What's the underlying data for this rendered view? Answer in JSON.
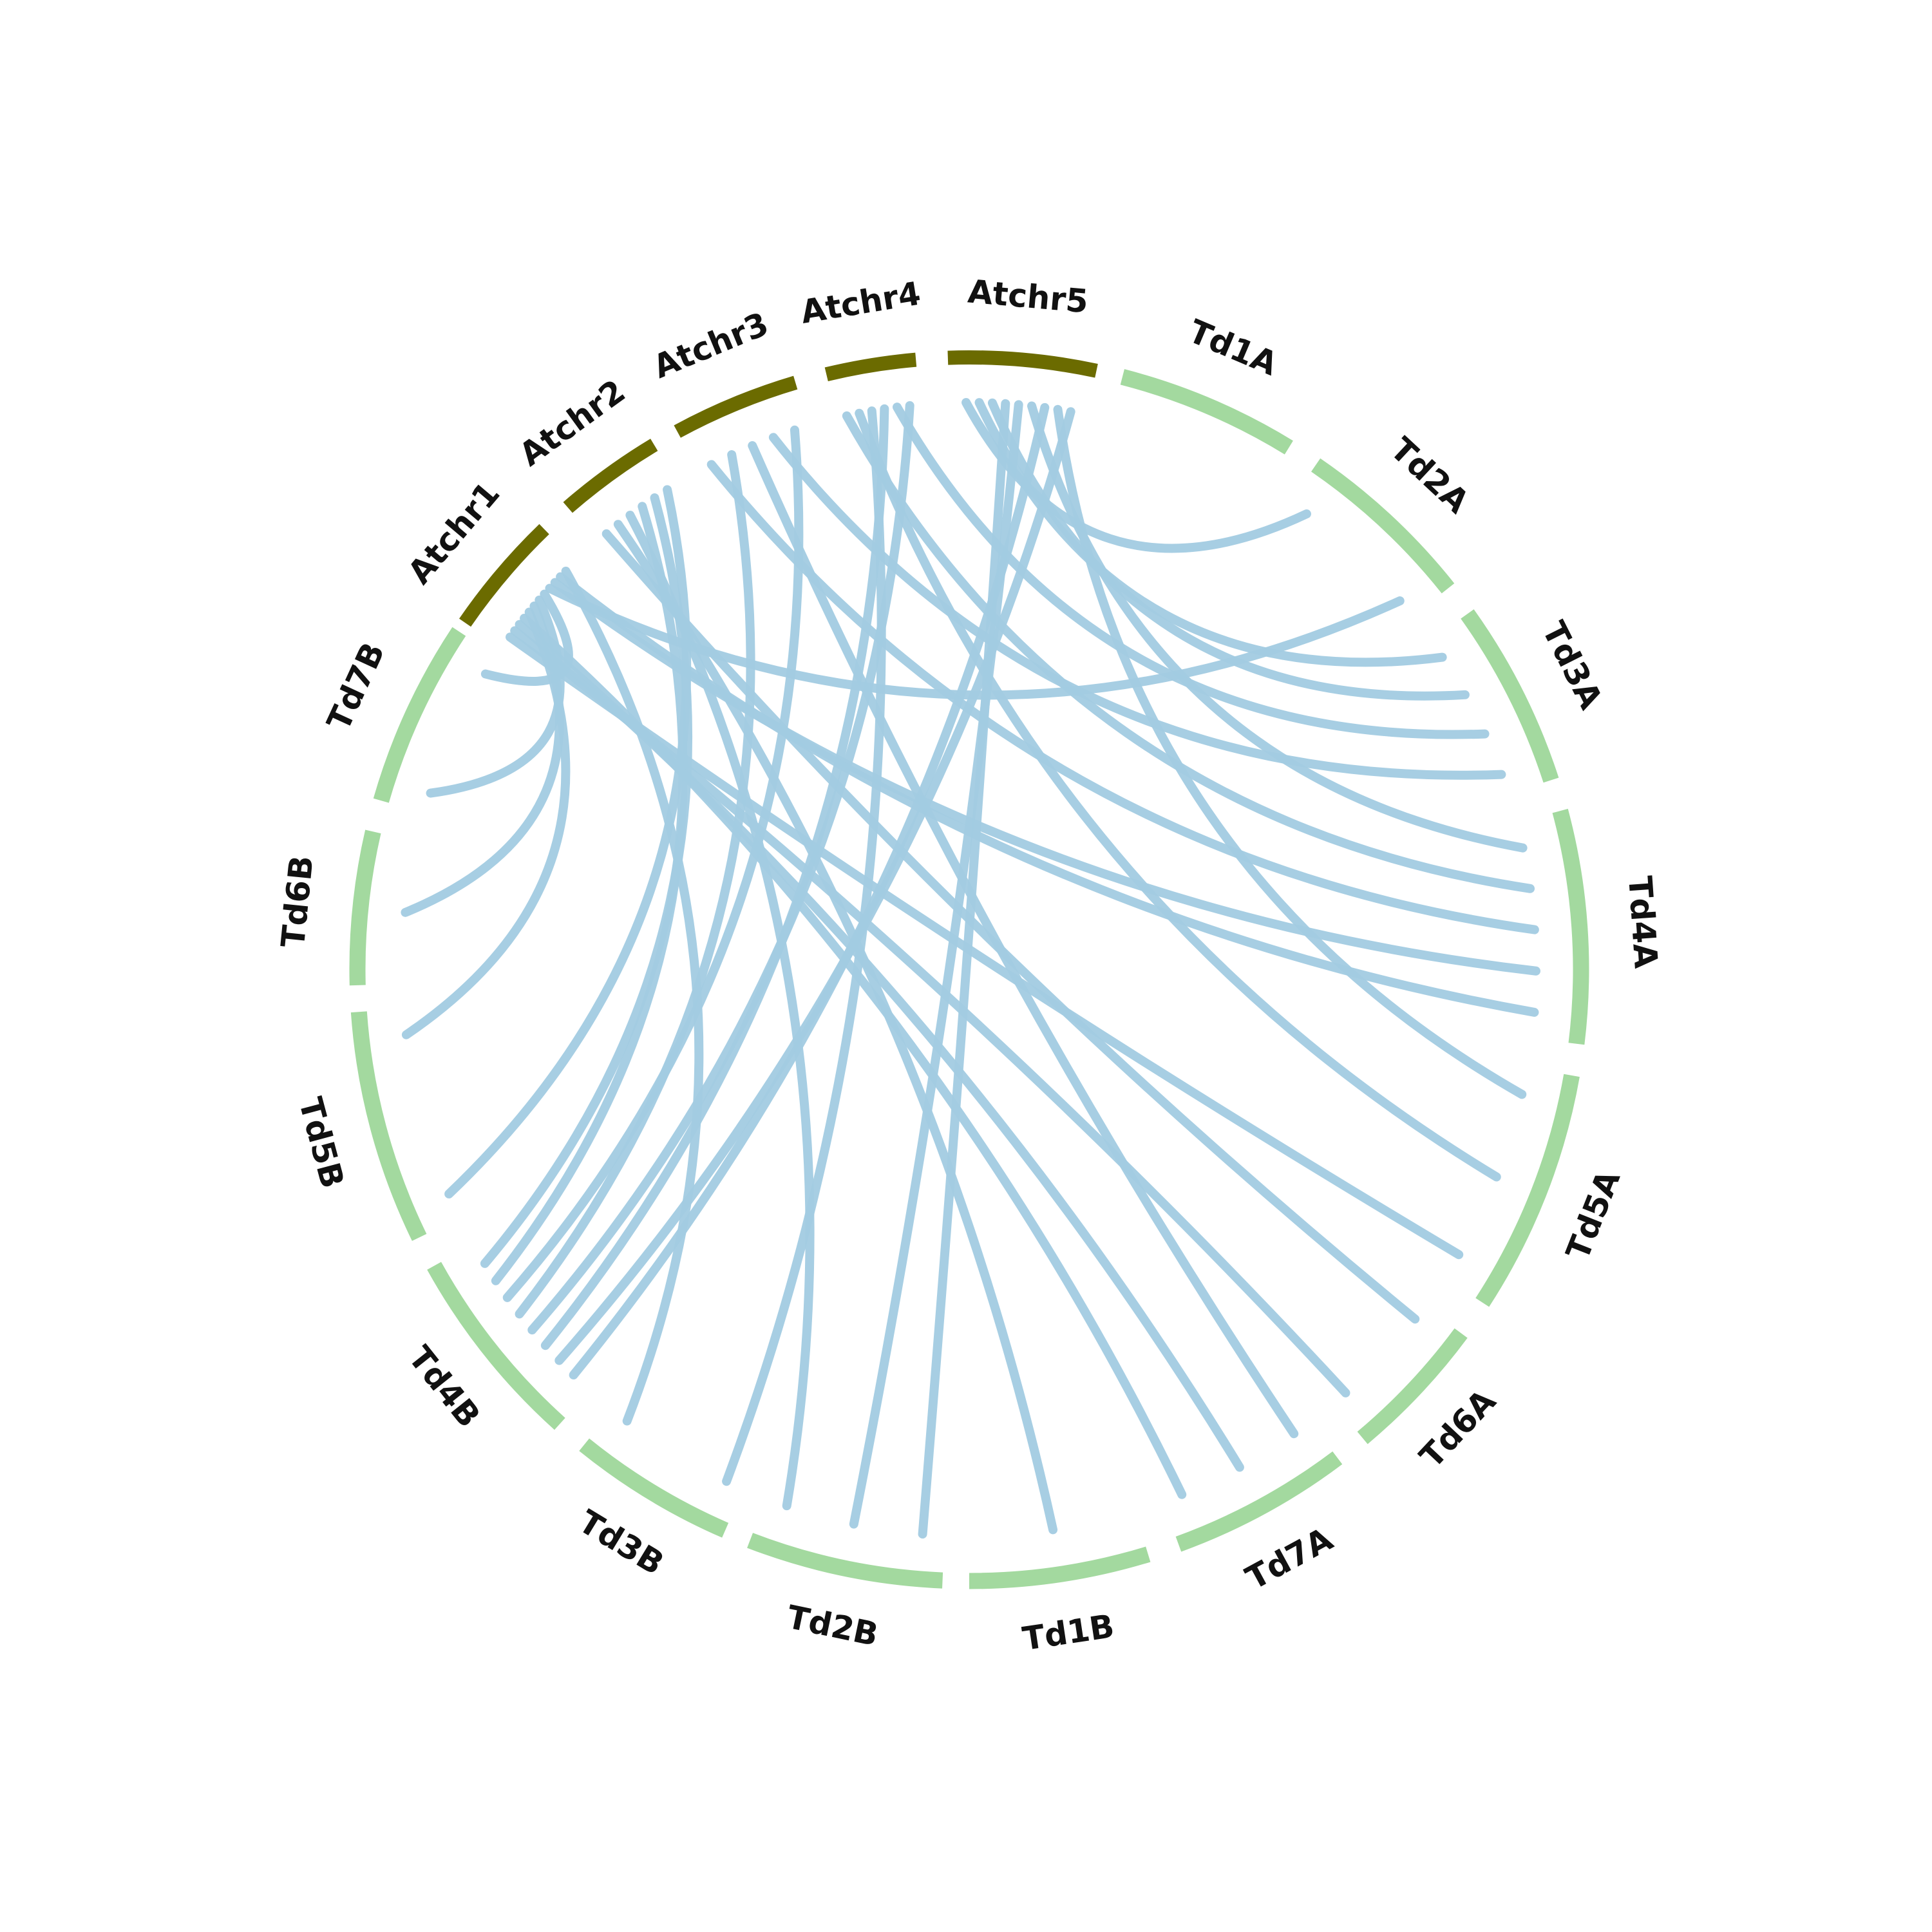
{
  "colors": {
    "background": "#ffffff",
    "reference_segment": "#6b6b00",
    "query_segment": "#a3d99f",
    "link": "#a2cbe1",
    "label": "#111111"
  },
  "chart_data": {
    "type": "circos",
    "layout": "circular, clockwise from top",
    "chromosomes": [
      {
        "name": "Atchr1",
        "group": "reference"
      },
      {
        "name": "Atchr2",
        "group": "reference"
      },
      {
        "name": "Atchr3",
        "group": "reference"
      },
      {
        "name": "Atchr4",
        "group": "reference"
      },
      {
        "name": "Atchr5",
        "group": "reference"
      },
      {
        "name": "Td1A",
        "group": "query"
      },
      {
        "name": "Td2A",
        "group": "query"
      },
      {
        "name": "Td3A",
        "group": "query"
      },
      {
        "name": "Td4A",
        "group": "query"
      },
      {
        "name": "Td5A",
        "group": "query"
      },
      {
        "name": "Td6A",
        "group": "query"
      },
      {
        "name": "Td7A",
        "group": "query"
      },
      {
        "name": "Td1B",
        "group": "query"
      },
      {
        "name": "Td2B",
        "group": "query"
      },
      {
        "name": "Td3B",
        "group": "query"
      },
      {
        "name": "Td4B",
        "group": "query"
      },
      {
        "name": "Td5B",
        "group": "query"
      },
      {
        "name": "Td6B",
        "group": "query"
      },
      {
        "name": "Td7B",
        "group": "query"
      }
    ],
    "links": [
      [
        "Atchr5",
        "Td2A"
      ],
      [
        "Atchr5",
        "Td3A"
      ],
      [
        "Atchr5",
        "Td3A"
      ],
      [
        "Atchr5",
        "Td2B"
      ],
      [
        "Atchr5",
        "Td2B"
      ],
      [
        "Atchr5",
        "Td4A"
      ],
      [
        "Atchr5",
        "Td4B"
      ],
      [
        "Atchr5",
        "Td5A"
      ],
      [
        "Atchr5",
        "Td4B"
      ],
      [
        "Atchr4",
        "Td4A"
      ],
      [
        "Atchr4",
        "Td5A"
      ],
      [
        "Atchr4",
        "Td3B"
      ],
      [
        "Atchr4",
        "Td4B"
      ],
      [
        "Atchr4",
        "Td3A"
      ],
      [
        "Atchr4",
        "Td4B"
      ],
      [
        "Atchr3",
        "Td4A"
      ],
      [
        "Atchr3",
        "Td4B"
      ],
      [
        "Atchr3",
        "Td7A"
      ],
      [
        "Atchr3",
        "Td3A"
      ],
      [
        "Atchr3",
        "Td4B"
      ],
      [
        "Atchr2",
        "Td6A"
      ],
      [
        "Atchr2",
        "Td1B"
      ],
      [
        "Atchr2",
        "Td2B"
      ],
      [
        "Atchr2",
        "Td4B"
      ],
      [
        "Atchr2",
        "Td4B"
      ],
      [
        "Atchr2",
        "Td5B"
      ],
      [
        "Atchr1",
        "Td5A"
      ],
      [
        "Atchr1",
        "Td6A"
      ],
      [
        "Atchr1",
        "Td7A"
      ],
      [
        "Atchr1",
        "Td7A"
      ],
      [
        "Atchr1",
        "Td5B"
      ],
      [
        "Atchr1",
        "Td6B"
      ],
      [
        "Atchr1",
        "Td7B"
      ],
      [
        "Atchr1",
        "Td7B"
      ],
      [
        "Atchr1",
        "Td2A"
      ],
      [
        "Atchr1",
        "Td4A"
      ],
      [
        "Atchr1",
        "Td4A"
      ],
      [
        "Atchr1",
        "Td3B"
      ]
    ]
  }
}
